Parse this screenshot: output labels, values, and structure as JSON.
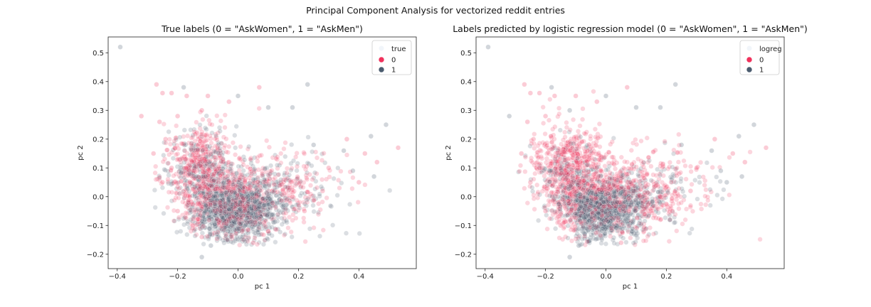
{
  "figure": {
    "suptitle": "Principal Component Analysis for vectorized reddit entries"
  },
  "colors": {
    "class_0": "#f0325c",
    "class_1": "#4b5c6f",
    "axes_edge": "#222222",
    "legend_edge": "#cccccc"
  },
  "chart_data": [
    {
      "type": "scatter",
      "title": "True labels (0 = \"AskWomen\", 1 = \"AskMen\")",
      "xlabel": "pc 1",
      "ylabel": "pc 2",
      "xlim": [
        -0.43,
        0.59
      ],
      "ylim": [
        -0.25,
        0.555
      ],
      "xticks": [
        "−0.4",
        "−0.2",
        "0.0",
        "0.2",
        "0.4"
      ],
      "xtick_values": [
        -0.4,
        -0.2,
        0.0,
        0.2,
        0.4
      ],
      "yticks": [
        "−0.2",
        "−0.1",
        "0.0",
        "0.1",
        "0.2",
        "0.3",
        "0.4",
        "0.5"
      ],
      "ytick_values": [
        -0.2,
        -0.1,
        0.0,
        0.1,
        0.2,
        0.3,
        0.4,
        0.5
      ],
      "grid": false,
      "legend": {
        "title": "true",
        "placement": "top-right",
        "entries": [
          "0",
          "1"
        ]
      },
      "series": [
        {
          "name": "0",
          "color": "#f0325c",
          "points": [
            [
              -0.32,
              0.28
            ],
            [
              -0.27,
              0.39
            ],
            [
              -0.25,
              0.36
            ],
            [
              -0.22,
              0.36
            ],
            [
              -0.17,
              0.35
            ],
            [
              -0.1,
              0.35
            ],
            [
              -0.03,
              0.33
            ],
            [
              0.07,
              0.38
            ],
            [
              -0.26,
              0.26
            ],
            [
              -0.2,
              0.28
            ],
            [
              -0.12,
              0.3
            ],
            [
              -0.24,
              0.2
            ],
            [
              -0.28,
              0.15
            ],
            [
              -0.22,
              0.1
            ],
            [
              -0.25,
              0.05
            ],
            [
              -0.2,
              -0.05
            ],
            [
              -0.15,
              -0.1
            ],
            [
              -0.12,
              -0.14
            ],
            [
              0.22,
              -0.05
            ],
            [
              0.3,
              0.1
            ],
            [
              0.36,
              0.2
            ],
            [
              0.42,
              0.15
            ],
            [
              0.53,
              0.17
            ],
            [
              0.46,
              0.12
            ],
            [
              0.4,
              0.05
            ],
            [
              0.28,
              0.02
            ],
            [
              0.18,
              0.0
            ],
            [
              0.1,
              -0.12
            ],
            [
              0.05,
              -0.16
            ]
          ]
        },
        {
          "name": "1",
          "color": "#4b5c6f",
          "points": [
            [
              -0.39,
              0.52
            ],
            [
              0.23,
              0.39
            ],
            [
              -0.18,
              0.38
            ],
            [
              0.0,
              0.35
            ],
            [
              0.49,
              0.25
            ],
            [
              0.44,
              0.21
            ],
            [
              0.35,
              0.16
            ],
            [
              0.25,
              0.18
            ],
            [
              0.18,
              0.31
            ],
            [
              0.1,
              0.31
            ],
            [
              -0.12,
              -0.21
            ],
            [
              -0.09,
              -0.17
            ],
            [
              0.45,
              0.07
            ],
            [
              0.38,
              0.09
            ],
            [
              -0.07,
              -0.13
            ]
          ]
        }
      ]
    },
    {
      "type": "scatter",
      "title": "Labels predicted by logistic regression model (0 = \"AskWomen\", 1 = \"AskMen\")",
      "xlabel": "pc 1",
      "ylabel": "pc 2",
      "xlim": [
        -0.43,
        0.59
      ],
      "ylim": [
        -0.25,
        0.555
      ],
      "xticks": [
        "−0.4",
        "−0.2",
        "0.0",
        "0.2",
        "0.4"
      ],
      "xtick_values": [
        -0.4,
        -0.2,
        0.0,
        0.2,
        0.4
      ],
      "yticks": [
        "−0.2",
        "−0.1",
        "0.0",
        "0.1",
        "0.2",
        "0.3",
        "0.4",
        "0.5"
      ],
      "ytick_values": [
        -0.2,
        -0.1,
        0.0,
        0.1,
        0.2,
        0.3,
        0.4,
        0.5
      ],
      "grid": false,
      "legend": {
        "title": "logreg",
        "placement": "top-right",
        "entries": [
          "0",
          "1"
        ]
      },
      "series": [
        {
          "name": "0",
          "color": "#f0325c",
          "points": [
            [
              -0.27,
              0.39
            ],
            [
              -0.25,
              0.36
            ],
            [
              -0.22,
              0.36
            ],
            [
              -0.17,
              0.35
            ],
            [
              -0.1,
              0.35
            ],
            [
              -0.03,
              0.33
            ],
            [
              0.07,
              0.38
            ],
            [
              -0.26,
              0.26
            ],
            [
              -0.2,
              0.28
            ],
            [
              -0.24,
              0.2
            ],
            [
              -0.28,
              0.15
            ],
            [
              -0.22,
              0.1
            ],
            [
              -0.25,
              0.05
            ],
            [
              -0.2,
              -0.05
            ],
            [
              -0.15,
              -0.1
            ],
            [
              0.22,
              -0.05
            ],
            [
              0.3,
              0.1
            ],
            [
              0.36,
              0.2
            ],
            [
              0.42,
              0.15
            ],
            [
              0.53,
              0.17
            ],
            [
              0.46,
              0.12
            ],
            [
              0.28,
              0.02
            ],
            [
              0.18,
              0.0
            ],
            [
              0.05,
              -0.16
            ]
          ]
        },
        {
          "name": "1",
          "color": "#4b5c6f",
          "points": [
            [
              -0.39,
              0.52
            ],
            [
              -0.32,
              0.28
            ],
            [
              0.23,
              0.39
            ],
            [
              -0.18,
              0.38
            ],
            [
              0.0,
              0.35
            ],
            [
              0.49,
              0.25
            ],
            [
              0.44,
              0.21
            ],
            [
              0.35,
              0.16
            ],
            [
              0.25,
              0.18
            ],
            [
              0.18,
              0.31
            ],
            [
              0.1,
              0.31
            ],
            [
              -0.12,
              -0.21
            ],
            [
              -0.09,
              -0.17
            ],
            [
              0.45,
              0.07
            ],
            [
              0.38,
              0.09
            ],
            [
              -0.07,
              -0.13
            ],
            [
              -0.12,
              0.3
            ],
            [
              0.4,
              0.05
            ],
            [
              0.1,
              -0.12
            ]
          ]
        }
      ]
    }
  ]
}
